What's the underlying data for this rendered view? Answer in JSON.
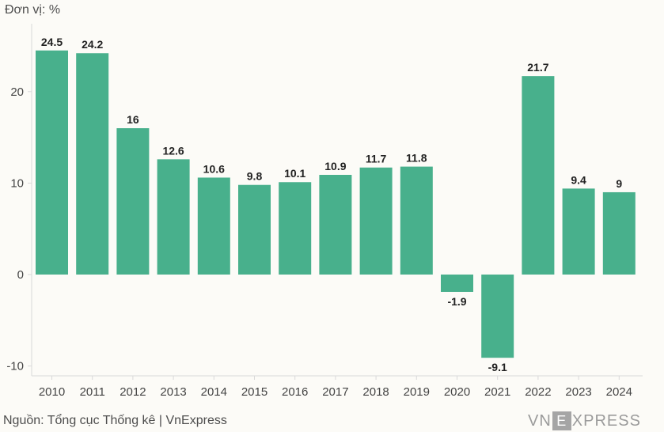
{
  "unit_label": "Đơn vị: %",
  "source": "Nguồn: Tổng cục Thống kê | VnExpress",
  "logo": {
    "left": "VN",
    "middle": "E",
    "right": "XPRESS"
  },
  "colors": {
    "bar": "#48b08c",
    "axis": "#d9d9d9",
    "background": "#fcfbf7"
  },
  "chart_data": {
    "type": "bar",
    "categories": [
      "2010",
      "2011",
      "2012",
      "2013",
      "2014",
      "2015",
      "2016",
      "2017",
      "2018",
      "2019",
      "2020",
      "2021",
      "2022",
      "2023",
      "2024"
    ],
    "values": [
      24.5,
      24.2,
      16,
      12.6,
      10.6,
      9.8,
      10.1,
      10.9,
      11.7,
      11.8,
      -1.9,
      -9.1,
      21.7,
      9.4,
      9
    ],
    "data_labels": [
      "24.5",
      "24.2",
      "16",
      "12.6",
      "10.6",
      "9.8",
      "10.1",
      "10.9",
      "11.7",
      "11.8",
      "-1.9",
      "-9.1",
      "21.7",
      "9.4",
      "9"
    ],
    "yticks": [
      -10,
      0,
      10,
      20
    ],
    "ylim": [
      -11,
      25.5
    ],
    "grid": false
  }
}
